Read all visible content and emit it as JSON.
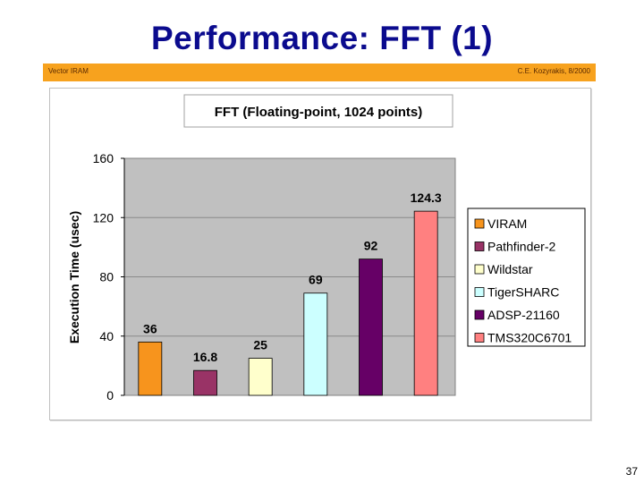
{
  "slide": {
    "title": "Performance: FFT (1)",
    "banner_left": "Vector IRAM",
    "banner_right": "C.E. Kozyrakis, 8/2000",
    "page_number": "37"
  },
  "colors": {
    "title": "#0b0b8e",
    "banner": "#f7a21e",
    "plot_background": "#c0c0c0"
  },
  "chart_data": {
    "type": "bar",
    "title": "FFT (Floating-point, 1024 points)",
    "xlabel": "",
    "ylabel": "Execution Time (usec)",
    "ylim": [
      0,
      160
    ],
    "yticks": [
      0,
      40,
      80,
      120,
      160
    ],
    "ytick_labels": [
      "0",
      "40",
      "80",
      "120",
      "160"
    ],
    "grid": true,
    "legend_position": "right",
    "series": [
      {
        "name": "VIRAM",
        "value": 36,
        "label": "36",
        "color": "#f7941d"
      },
      {
        "name": "Pathfinder-2",
        "value": 16.8,
        "label": "16.8",
        "color": "#993366"
      },
      {
        "name": "Wildstar",
        "value": 25,
        "label": "25",
        "color": "#ffffcc"
      },
      {
        "name": "TigerSHARC",
        "value": 69,
        "label": "69",
        "color": "#ccffff"
      },
      {
        "name": "ADSP-21160",
        "value": 92,
        "label": "92",
        "color": "#660066"
      },
      {
        "name": "TMS320C6701",
        "value": 124.3,
        "label": "124.3",
        "color": "#ff8080"
      }
    ]
  }
}
